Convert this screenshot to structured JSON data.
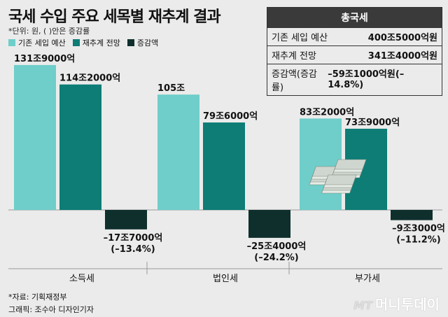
{
  "title": "국세 수입 주요 세목별 재추계 결과",
  "unit_note": "*단위: 원, ( )안은 증감률",
  "legend": [
    {
      "label": "기존 세입 예산",
      "color": "#6fcec9"
    },
    {
      "label": "재추계 전망",
      "color": "#0d7d76"
    },
    {
      "label": "증감액",
      "color": "#0f2f2c"
    }
  ],
  "totals": {
    "header": "총국세",
    "rows": [
      {
        "label": "기존 세입 예산",
        "value": "400조5000억원"
      },
      {
        "label": "재추계 전망",
        "value": "341조4000억원"
      },
      {
        "label": "증감액(증감률)",
        "value": "–59조1000억원(–14.8%)"
      }
    ]
  },
  "chart_data": {
    "type": "bar",
    "categories": [
      "소득세",
      "법인세",
      "부가세"
    ],
    "series": [
      {
        "name": "기존 세입 예산",
        "values": [
          131.9,
          105,
          83.2
        ],
        "labels": [
          "131조9000억",
          "105조",
          "83조2000억"
        ],
        "color": "#6fcec9"
      },
      {
        "name": "재추계 전망",
        "values": [
          114.2,
          79.6,
          73.9
        ],
        "labels": [
          "114조2000억",
          "79조6000억",
          "73조9000억"
        ],
        "color": "#0d7d76"
      },
      {
        "name": "증감액",
        "values": [
          -17.7,
          -25.4,
          -9.3
        ],
        "labels": [
          "–17조7000억",
          "–25조4000억",
          "–9조3000억"
        ],
        "pct": [
          "(–13.4%)",
          "(–24.2%)",
          "(–11.2%)"
        ],
        "color": "#0f2f2c"
      }
    ],
    "ylim": [
      -27,
      140
    ]
  },
  "source": "*자료: 기획재정부",
  "credit": "그래픽: 조수아 디자인기자",
  "brand": {
    "prefix": "MT",
    "name": "머니투데이"
  }
}
